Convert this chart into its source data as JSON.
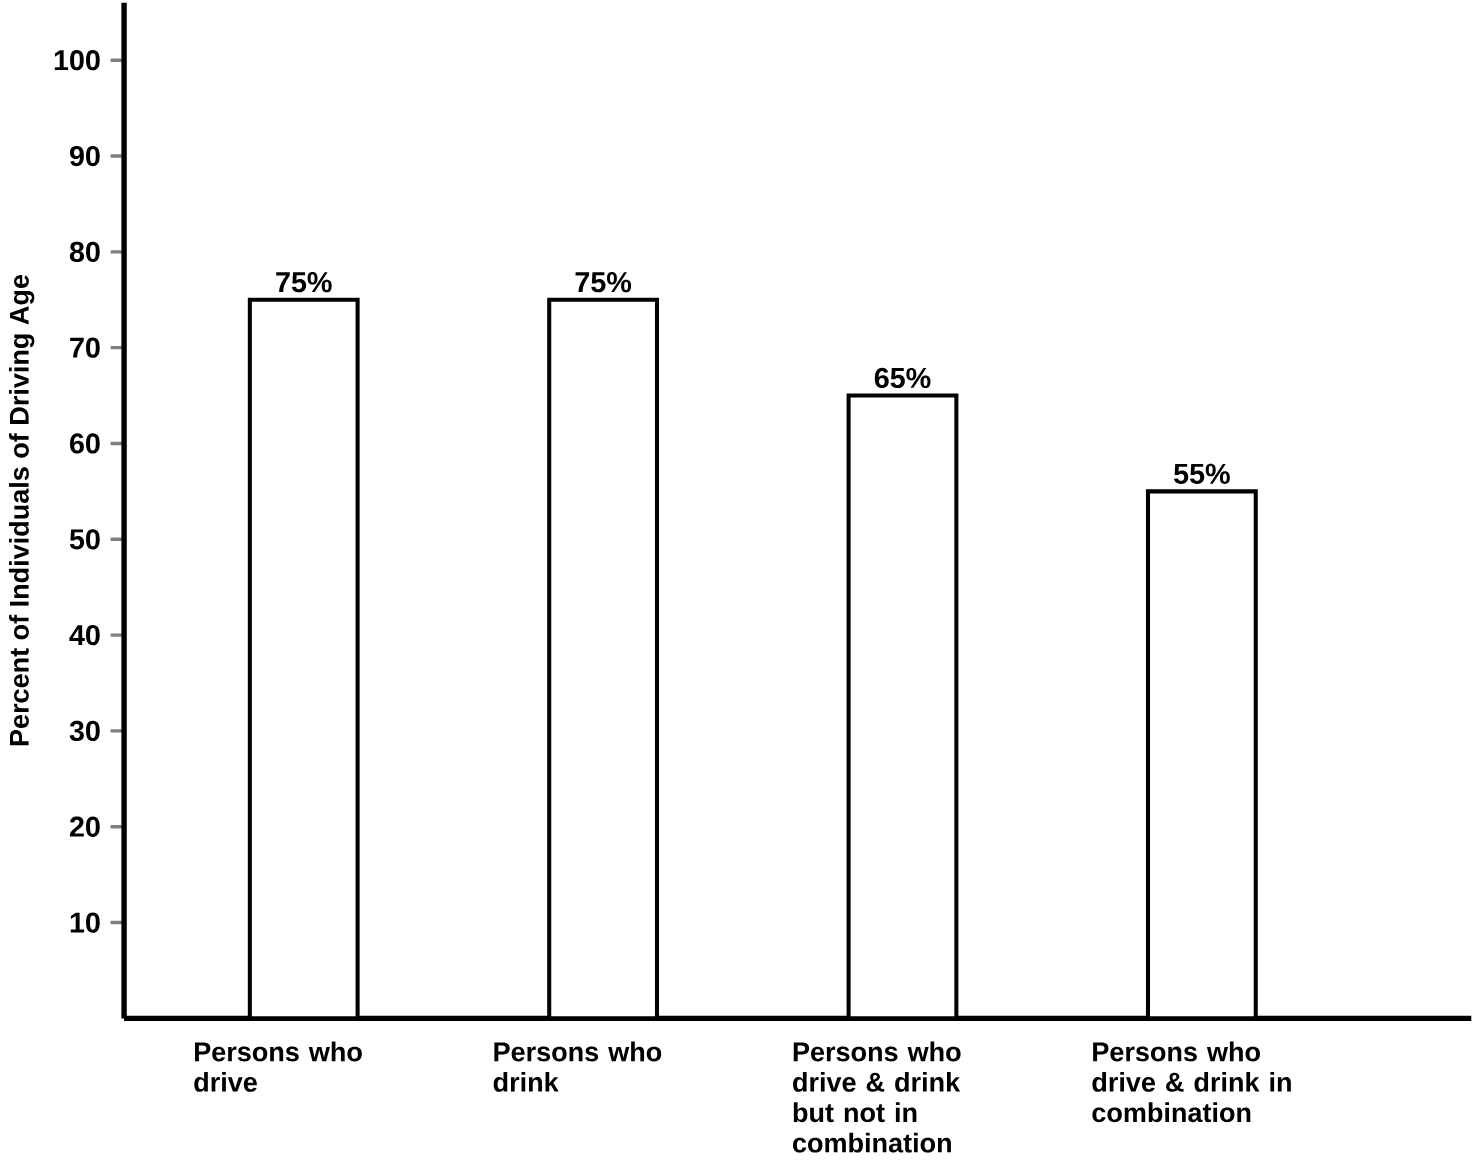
{
  "chart_data": {
    "type": "bar",
    "ylabel": "Percent of Individuals of Driving Age",
    "categories": [
      "Persons who drive",
      "Persons who drink",
      "Persons who drive & drink but not in combination",
      "Persons who drive & drink in combination"
    ],
    "values": [
      75,
      75,
      65,
      55
    ],
    "value_labels": [
      "75%",
      "75%",
      "65%",
      "55%"
    ],
    "color": "#ffffff",
    "ylim": [
      0,
      106
    ],
    "yticks": [
      10,
      20,
      30,
      40,
      50,
      60,
      70,
      80,
      90,
      100
    ],
    "grid": false
  }
}
